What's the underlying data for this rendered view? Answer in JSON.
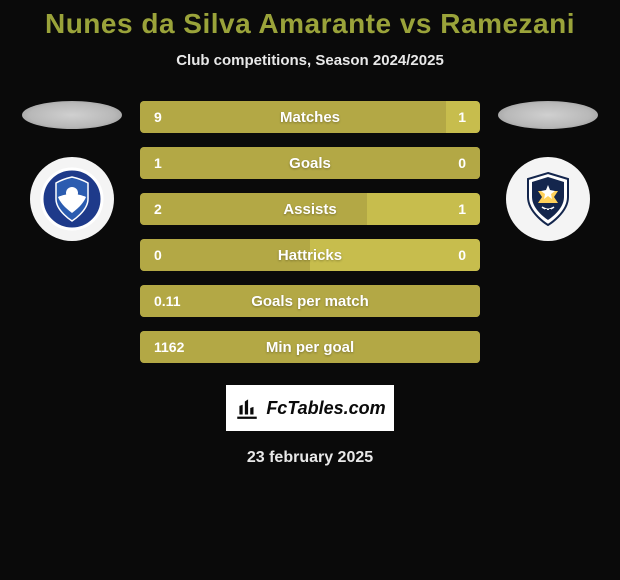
{
  "title": "Nunes da Silva Amarante vs Ramezani",
  "subtitle": "Club competitions, Season 2024/2025",
  "date": "23 february 2025",
  "badge_text": "FcTables.com",
  "colors": {
    "left_bar": "#b3a845",
    "right_bar": "#c7bd4d",
    "bar_bg": "#9c9235",
    "title": "#9aa33a",
    "text": "#e8e8e8",
    "background": "#0a0a0a",
    "crest_blue1": "#1e3a8a",
    "crest_blue2": "#2b5cb0",
    "crest_white": "#ffffff",
    "crest_navy": "#14264d"
  },
  "bars": [
    {
      "metric": "Matches",
      "left": "9",
      "right": "1",
      "left_w": 90,
      "right_w": 10
    },
    {
      "metric": "Goals",
      "left": "1",
      "right": "0",
      "left_w": 100,
      "right_w": 0
    },
    {
      "metric": "Assists",
      "left": "2",
      "right": "1",
      "left_w": 66.7,
      "right_w": 33.3
    },
    {
      "metric": "Hattricks",
      "left": "0",
      "right": "0",
      "left_w": 50,
      "right_w": 50
    },
    {
      "metric": "Goals per match",
      "left": "0.11",
      "right": "",
      "left_w": 100,
      "right_w": 0
    },
    {
      "metric": "Min per goal",
      "left": "1162",
      "right": "",
      "left_w": 100,
      "right_w": 0
    }
  ]
}
